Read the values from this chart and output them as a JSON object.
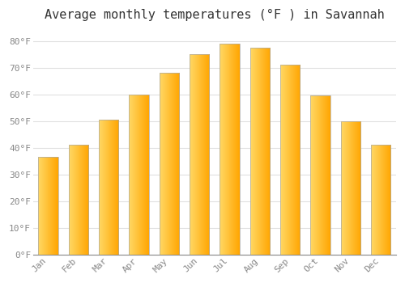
{
  "title": "Average monthly temperatures (°F ) in Savannah",
  "months": [
    "Jan",
    "Feb",
    "Mar",
    "Apr",
    "May",
    "Jun",
    "Jul",
    "Aug",
    "Sep",
    "Oct",
    "Nov",
    "Dec"
  ],
  "values": [
    36.5,
    41,
    50.5,
    60,
    68,
    75,
    79,
    77.5,
    71,
    59.5,
    50,
    41
  ],
  "bar_color_left": "#FFD966",
  "bar_color_right": "#FFA500",
  "bar_border_color": "#AAAAAA",
  "ylim": [
    0,
    85
  ],
  "yticks": [
    0,
    10,
    20,
    30,
    40,
    50,
    60,
    70,
    80
  ],
  "ytick_labels": [
    "0°F",
    "10°F",
    "20°F",
    "30°F",
    "40°F",
    "50°F",
    "60°F",
    "70°F",
    "80°F"
  ],
  "background_color": "#ffffff",
  "plot_bg_color": "#ffffff",
  "grid_color": "#e0e0e0",
  "title_fontsize": 11,
  "tick_fontsize": 8,
  "title_color": "#333333",
  "tick_color": "#888888",
  "bar_width": 0.65
}
